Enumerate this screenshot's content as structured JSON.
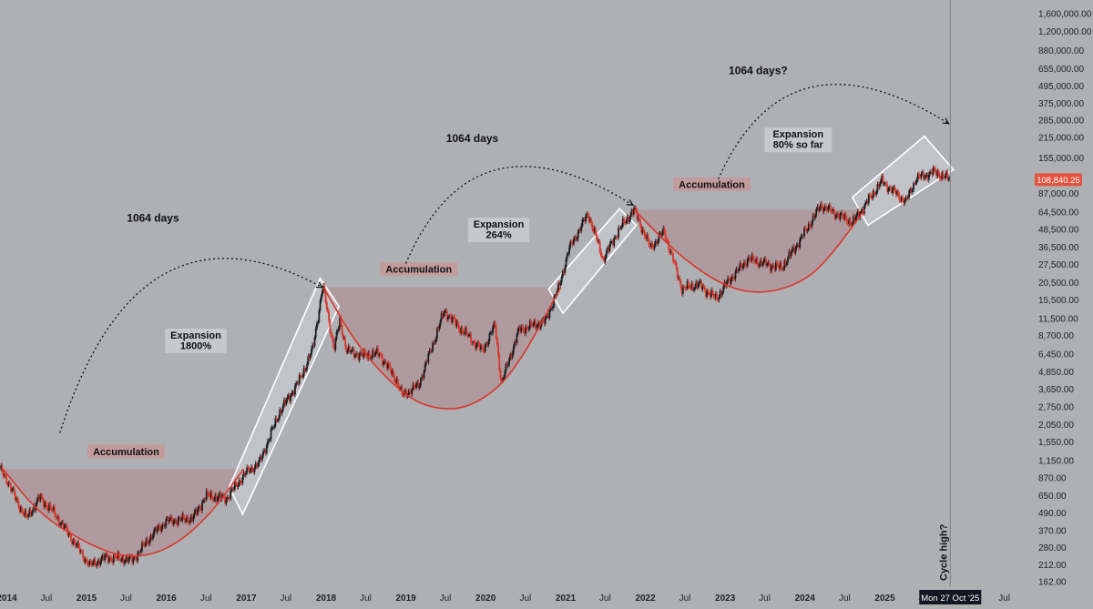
{
  "chart_data": {
    "type": "candlestick",
    "scale": "log",
    "ylim": [
      150,
      2000000
    ],
    "xlim": [
      "2013-12-01",
      "2026-10-15"
    ],
    "y_ticks": [
      1600000,
      1200000,
      880000,
      655000,
      495000,
      375000,
      285000,
      215000,
      155000,
      87000,
      64500,
      48500,
      36500,
      27500,
      20500,
      15500,
      11500,
      8700,
      6450,
      4850,
      3650,
      2750,
      2050,
      1550,
      1150,
      870,
      650,
      490,
      370,
      280,
      212,
      162
    ],
    "y_tick_labels": [
      "1,600,000.00",
      "1,200,000.00",
      "880,000.00",
      "655,000.00",
      "495,000.00",
      "375,000.00",
      "285,000.00",
      "215,000.00",
      "155,000.00",
      "87,000.00",
      "64,500.00",
      "48,500.00",
      "36,500.00",
      "27,500.00",
      "20,500.00",
      "15,500.00",
      "11,500.00",
      "8,700.00",
      "6,450.00",
      "4,850.00",
      "3,650.00",
      "2,750.00",
      "2,050.00",
      "1,550.00",
      "1,150.00",
      "870.00",
      "650.00",
      "490.00",
      "370.00",
      "280.00",
      "212.00",
      "162.00"
    ],
    "x_ticks": [
      {
        "date": "2014-01-01",
        "label": "2014",
        "year": true
      },
      {
        "date": "2014-07-01",
        "label": "Jul",
        "year": false
      },
      {
        "date": "2015-01-01",
        "label": "2015",
        "year": true
      },
      {
        "date": "2015-07-01",
        "label": "Jul",
        "year": false
      },
      {
        "date": "2016-01-01",
        "label": "2016",
        "year": true
      },
      {
        "date": "2016-07-01",
        "label": "Jul",
        "year": false
      },
      {
        "date": "2017-01-01",
        "label": "2017",
        "year": true
      },
      {
        "date": "2017-07-01",
        "label": "Jul",
        "year": false
      },
      {
        "date": "2018-01-01",
        "label": "2018",
        "year": true
      },
      {
        "date": "2018-07-01",
        "label": "Jul",
        "year": false
      },
      {
        "date": "2019-01-01",
        "label": "2019",
        "year": true
      },
      {
        "date": "2019-07-01",
        "label": "Jul",
        "year": false
      },
      {
        "date": "2020-01-01",
        "label": "2020",
        "year": true
      },
      {
        "date": "2020-07-01",
        "label": "Jul",
        "year": false
      },
      {
        "date": "2021-01-01",
        "label": "2021",
        "year": true
      },
      {
        "date": "2021-07-01",
        "label": "Jul",
        "year": false
      },
      {
        "date": "2022-01-01",
        "label": "2022",
        "year": true
      },
      {
        "date": "2022-07-01",
        "label": "Jul",
        "year": false
      },
      {
        "date": "2023-01-01",
        "label": "2023",
        "year": true
      },
      {
        "date": "2023-07-01",
        "label": "Jul",
        "year": false
      },
      {
        "date": "2024-01-01",
        "label": "2024",
        "year": true
      },
      {
        "date": "2024-07-01",
        "label": "Jul",
        "year": false
      },
      {
        "date": "2025-01-01",
        "label": "2025",
        "year": true
      },
      {
        "date": "2025-07-01",
        "label": "Jul",
        "year": false
      },
      {
        "date": "2026-07-01",
        "label": "Jul",
        "year": false
      }
    ],
    "crosshair": {
      "date": "2025-10-27",
      "label": "Mon 27 Oct '25",
      "note": "Cycle high?"
    },
    "last_price": {
      "value": 108840.25,
      "label": "108,840.25",
      "color": "#e5533f"
    },
    "colors": {
      "up": "#1c1e21",
      "down": "#d8372b",
      "fill": "#b08b8e",
      "curve": "#d8372b"
    },
    "price_path": [
      [
        "2013-12-01",
        1000
      ],
      [
        "2014-01-01",
        850
      ],
      [
        "2014-02-15",
        600
      ],
      [
        "2014-04-01",
        450
      ],
      [
        "2014-06-01",
        630
      ],
      [
        "2014-08-01",
        500
      ],
      [
        "2014-10-01",
        370
      ],
      [
        "2015-01-15",
        210
      ],
      [
        "2015-04-01",
        240
      ],
      [
        "2015-08-01",
        230
      ],
      [
        "2015-11-01",
        350
      ],
      [
        "2016-01-01",
        430
      ],
      [
        "2016-05-01",
        450
      ],
      [
        "2016-07-01",
        650
      ],
      [
        "2016-10-01",
        620
      ],
      [
        "2017-01-01",
        950
      ],
      [
        "2017-03-01",
        1100
      ],
      [
        "2017-06-01",
        2500
      ],
      [
        "2017-09-01",
        4200
      ],
      [
        "2017-11-01",
        7000
      ],
      [
        "2017-12-17",
        19500
      ],
      [
        "2018-02-06",
        7000
      ],
      [
        "2018-03-05",
        11000
      ],
      [
        "2018-04-06",
        6800
      ],
      [
        "2018-06-15",
        6300
      ],
      [
        "2018-09-01",
        6500
      ],
      [
        "2018-11-20",
        4200
      ],
      [
        "2018-12-15",
        3300
      ],
      [
        "2019-03-01",
        3900
      ],
      [
        "2019-06-26",
        13000
      ],
      [
        "2019-09-01",
        10000
      ],
      [
        "2019-12-18",
        6800
      ],
      [
        "2020-02-13",
        10300
      ],
      [
        "2020-03-13",
        4000
      ],
      [
        "2020-06-01",
        9500
      ],
      [
        "2020-10-01",
        11000
      ],
      [
        "2020-12-01",
        19000
      ],
      [
        "2021-01-15",
        35000
      ],
      [
        "2021-04-14",
        63000
      ],
      [
        "2021-06-22",
        30000
      ],
      [
        "2021-09-01",
        48000
      ],
      [
        "2021-11-10",
        67000
      ],
      [
        "2022-01-24",
        36000
      ],
      [
        "2022-03-28",
        47000
      ],
      [
        "2022-06-18",
        18500
      ],
      [
        "2022-09-01",
        20000
      ],
      [
        "2022-11-21",
        15800
      ],
      [
        "2023-01-15",
        21000
      ],
      [
        "2023-04-15",
        30000
      ],
      [
        "2023-09-15",
        26000
      ],
      [
        "2023-12-15",
        42000
      ],
      [
        "2024-03-14",
        72000
      ],
      [
        "2024-08-05",
        54000
      ],
      [
        "2024-11-15",
        90000
      ],
      [
        "2024-12-17",
        106000
      ],
      [
        "2025-04-07",
        76000
      ],
      [
        "2025-05-22",
        110000
      ],
      [
        "2025-08-14",
        124000
      ],
      [
        "2025-10-27",
        108840
      ]
    ],
    "accumulation_zones": [
      {
        "label": "Accumulation",
        "label_date": "2015-07-01",
        "label_price": 1300,
        "top": 1000,
        "curve": [
          [
            "2013-12-15",
            1000
          ],
          [
            "2014-06-01",
            480
          ],
          [
            "2015-01-01",
            300
          ],
          [
            "2015-07-01",
            235
          ],
          [
            "2016-01-01",
            265
          ],
          [
            "2016-07-01",
            440
          ],
          [
            "2016-12-20",
            1000
          ]
        ]
      },
      {
        "label": "Accumulation",
        "label_date": "2019-03-01",
        "label_price": 25000,
        "top": 19000,
        "curve": [
          [
            "2017-12-20",
            19000
          ],
          [
            "2018-06-01",
            7000
          ],
          [
            "2019-01-01",
            3200
          ],
          [
            "2019-06-01",
            2600
          ],
          [
            "2019-11-01",
            2750
          ],
          [
            "2020-05-01",
            4500
          ],
          [
            "2020-12-10",
            19000
          ]
        ]
      },
      {
        "label": "Accumulation",
        "label_date": "2022-11-01",
        "label_price": 99000,
        "top": 67000,
        "curve": [
          [
            "2021-11-10",
            67000
          ],
          [
            "2022-06-01",
            32000
          ],
          [
            "2023-01-01",
            19000
          ],
          [
            "2023-07-01",
            17000
          ],
          [
            "2024-01-01",
            21000
          ],
          [
            "2024-05-01",
            32000
          ],
          [
            "2024-10-01",
            67000
          ]
        ]
      }
    ],
    "expansion_labels": [
      {
        "lines": [
          "Expansion",
          "1800%"
        ],
        "date": "2016-05-15",
        "price": 8300
      },
      {
        "lines": [
          "Expansion",
          "264%"
        ],
        "date": "2020-03-01",
        "price": 50000
      },
      {
        "lines": [
          "Expansion",
          "80% so far"
        ],
        "date": "2023-12-01",
        "price": 215000
      }
    ],
    "cycle_annotations": [
      {
        "label": "1064 days",
        "date": "2015-11-01",
        "price": 55000,
        "from": [
          "2014-09-01",
          1800
        ],
        "to": [
          "2017-12-15",
          19000
        ]
      },
      {
        "label": "1064 days",
        "date": "2019-11-01",
        "price": 200000,
        "from": [
          "2019-01-01",
          28000
        ],
        "to": [
          "2021-11-05",
          72000
        ]
      },
      {
        "label": "1064 days?",
        "date": "2023-06-01",
        "price": 600000,
        "from": [
          "2022-12-01",
          110000
        ],
        "to": [
          "2025-10-20",
          270000
        ]
      }
    ],
    "expansion_boxes": [
      [
        [
          "2016-10-15",
          750
        ],
        [
          "2017-12-05",
          22000
        ],
        [
          "2018-03-01",
          14000
        ],
        [
          "2016-12-15",
          480
        ]
      ],
      [
        [
          "2020-10-15",
          18500
        ],
        [
          "2021-09-05",
          68000
        ],
        [
          "2021-11-20",
          52000
        ],
        [
          "2020-12-20",
          12500
        ]
      ],
      [
        [
          "2024-08-05",
          82000
        ],
        [
          "2025-07-01",
          220000
        ],
        [
          "2025-11-10",
          128000
        ],
        [
          "2024-10-15",
          52000
        ]
      ]
    ]
  }
}
